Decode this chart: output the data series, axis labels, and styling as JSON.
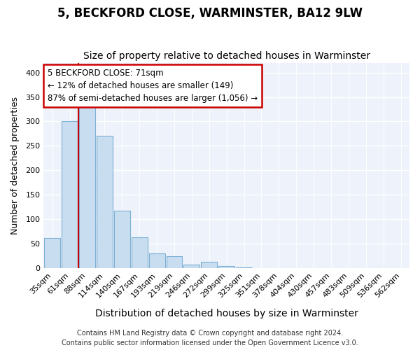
{
  "title": "5, BECKFORD CLOSE, WARMINSTER, BA12 9LW",
  "subtitle": "Size of property relative to detached houses in Warminster",
  "xlabel": "Distribution of detached houses by size in Warminster",
  "ylabel": "Number of detached properties",
  "footer_line1": "Contains HM Land Registry data © Crown copyright and database right 2024.",
  "footer_line2": "Contains public sector information licensed under the Open Government Licence v3.0.",
  "categories": [
    "35sqm",
    "61sqm",
    "88sqm",
    "114sqm",
    "140sqm",
    "167sqm",
    "193sqm",
    "219sqm",
    "246sqm",
    "272sqm",
    "299sqm",
    "325sqm",
    "351sqm",
    "378sqm",
    "404sqm",
    "430sqm",
    "457sqm",
    "483sqm",
    "509sqm",
    "536sqm",
    "562sqm"
  ],
  "values": [
    62,
    300,
    330,
    270,
    118,
    63,
    30,
    25,
    8,
    13,
    5,
    2,
    1,
    1,
    1,
    0,
    0,
    0,
    0,
    0,
    1
  ],
  "bar_face_color": "#c9ddf0",
  "bar_edge_color": "#7bafd4",
  "vline_position": 1.5,
  "vline_color": "#cc0000",
  "annotation_line1": "5 BECKFORD CLOSE: 71sqm",
  "annotation_line2": "← 12% of detached houses are smaller (149)",
  "annotation_line3": "87% of semi-detached houses are larger (1,056) →",
  "annotation_box_facecolor": "#ffffff",
  "annotation_box_edgecolor": "#cc0000",
  "ylim": [
    0,
    420
  ],
  "yticks": [
    0,
    50,
    100,
    150,
    200,
    250,
    300,
    350,
    400
  ],
  "plot_bg_color": "#eef3fb",
  "grid_color": "#ffffff",
  "title_fontsize": 12,
  "subtitle_fontsize": 10,
  "xlabel_fontsize": 10,
  "ylabel_fontsize": 9,
  "tick_fontsize": 8,
  "annot_fontsize": 8.5,
  "footer_fontsize": 7
}
